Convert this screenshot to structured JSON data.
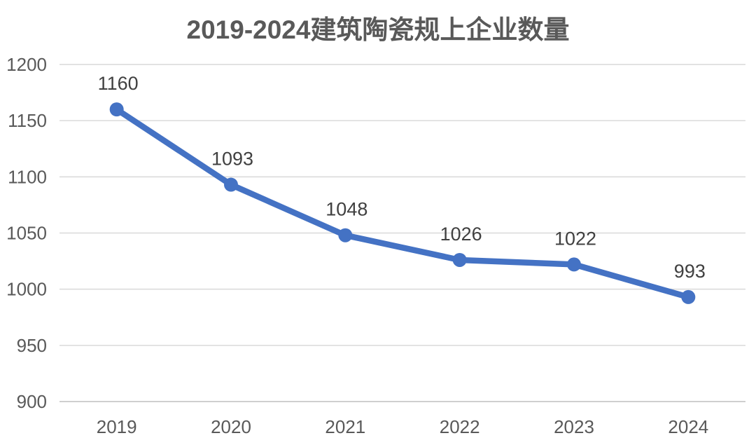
{
  "title": "2019-2024建筑陶瓷规上企业数量",
  "chart_data": {
    "type": "line",
    "title": "2019-2024建筑陶瓷规上企业数量",
    "categories": [
      "2019",
      "2020",
      "2021",
      "2022",
      "2023",
      "2024"
    ],
    "series": [
      {
        "name": "建筑陶瓷规上企业数量",
        "values": [
          1160,
          1093,
          1048,
          1026,
          1022,
          993
        ]
      }
    ],
    "data_labels": [
      "1160",
      "1093",
      "1048",
      "1026",
      "1022",
      "993"
    ],
    "xlabel": "",
    "ylabel": "",
    "ylim": [
      900,
      1200
    ],
    "yticks": [
      900,
      950,
      1000,
      1050,
      1100,
      1150,
      1200
    ],
    "grid": true,
    "legend": "none",
    "marker": "circle",
    "colors": {
      "line": "#4472C4",
      "marker": "#4472C4",
      "gridline": "#D9D9D9",
      "axis_line": "#BFBFBF",
      "axis_label": "#595959",
      "data_label": "#404040",
      "title": "#595959",
      "background": "#FFFFFF"
    }
  }
}
